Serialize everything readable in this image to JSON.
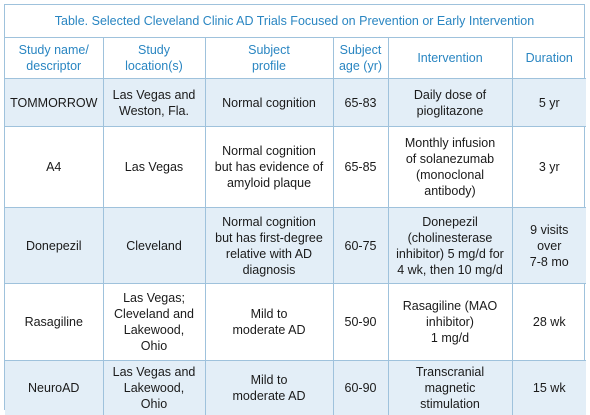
{
  "table": {
    "caption": "Table. Selected Cleveland Clinic AD Trials Focused on Prevention or Early Intervention",
    "headers": [
      [
        "Study name/",
        "descriptor"
      ],
      [
        "Study",
        "location(s)"
      ],
      [
        "Subject",
        "profile"
      ],
      [
        "Subject",
        "age (yr)"
      ],
      [
        "Intervention"
      ],
      [
        "Duration"
      ]
    ],
    "rows": [
      {
        "shaded": true,
        "cells": [
          "TOMMORROW",
          "Las Vegas and\nWeston, Fla.",
          "Normal cognition",
          "65-83",
          "Daily dose of\npioglitazone",
          "5 yr"
        ]
      },
      {
        "shaded": false,
        "cells": [
          "A4",
          "Las Vegas",
          "Normal cognition\nbut has evidence of\namyloid plaque",
          "65-85",
          "Monthly infusion\nof solanezumab\n(monoclonal\nantibody)",
          "3 yr"
        ]
      },
      {
        "shaded": true,
        "cells": [
          "Donepezil",
          "Cleveland",
          "Normal cognition\nbut has first-degree\nrelative with AD\ndiagnosis",
          "60-75",
          "Donepezil\n(cholinesterase\ninhibitor) 5 mg/d for\n4 wk, then 10 mg/d",
          "9 visits\nover\n7-8 mo"
        ]
      },
      {
        "shaded": false,
        "cells": [
          "Rasagiline",
          "Las Vegas;\nCleveland and\nLakewood,\nOhio",
          "Mild to\nmoderate AD",
          "50-90",
          "Rasagiline (MAO\ninhibitor)\n1 mg/d",
          "28 wk"
        ]
      },
      {
        "shaded": true,
        "cells": [
          "NeuroAD",
          "Las Vegas and\nLakewood,\nOhio",
          "Mild to\nmoderate AD",
          "60-90",
          "Transcranial\nmagnetic\nstimulation",
          "15 wk"
        ]
      }
    ]
  }
}
